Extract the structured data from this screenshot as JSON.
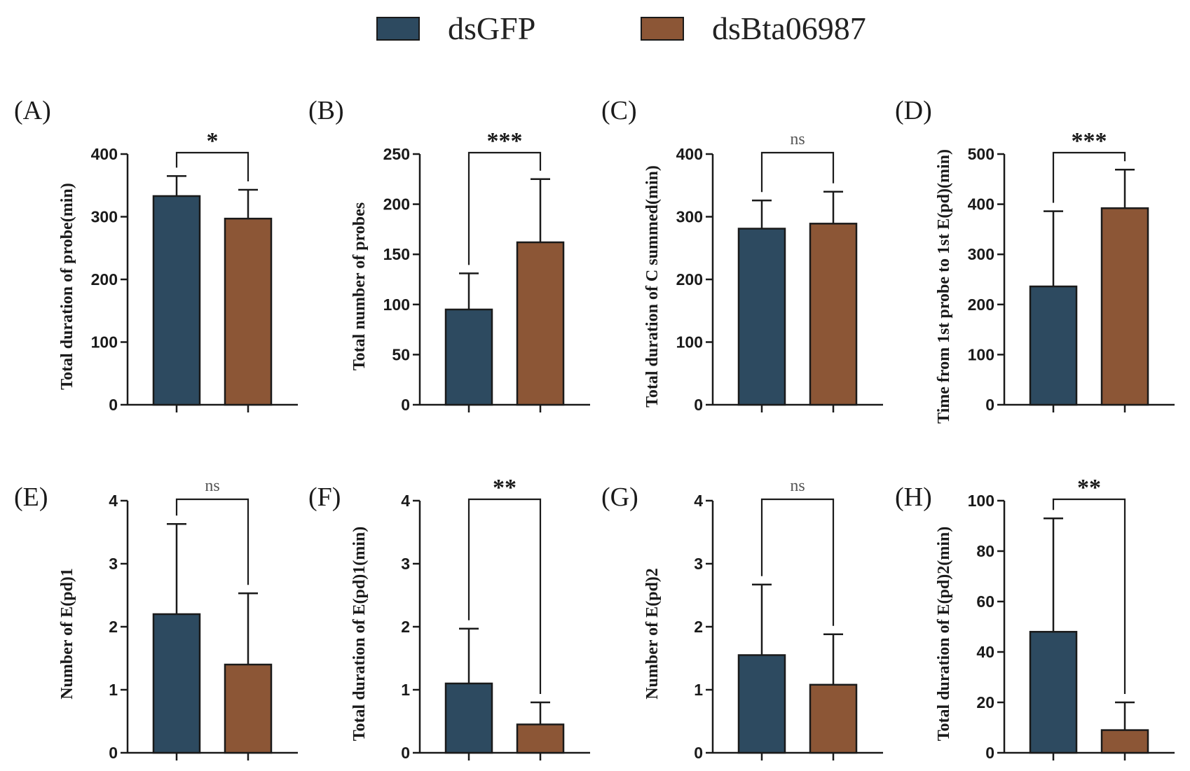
{
  "legend": {
    "items": [
      {
        "label": "dsGFP",
        "color": "#2d4a60"
      },
      {
        "label": "dsBta06987",
        "color": "#8c5636"
      }
    ]
  },
  "chart_data": [
    {
      "type": "bar",
      "panel": "(A)",
      "categories": [
        "dsGFP",
        "dsBta06987"
      ],
      "ylabel": "Total duration of probe(min)",
      "ylim": [
        0,
        400
      ],
      "yticks": [
        0,
        100,
        200,
        300,
        400
      ],
      "values": [
        333,
        297
      ],
      "errors": [
        32,
        46
      ],
      "significance": "*"
    },
    {
      "type": "bar",
      "panel": "(B)",
      "categories": [
        "dsGFP",
        "dsBta06987"
      ],
      "ylabel": "Total number of probes",
      "ylim": [
        0,
        250
      ],
      "yticks": [
        0,
        50,
        100,
        150,
        200,
        250
      ],
      "values": [
        95,
        162
      ],
      "errors": [
        36,
        63
      ],
      "significance": "***"
    },
    {
      "type": "bar",
      "panel": "(C)",
      "categories": [
        "dsGFP",
        "dsBta06987"
      ],
      "ylabel": "Total duration of C summed(min)",
      "ylim": [
        0,
        400
      ],
      "yticks": [
        0,
        100,
        200,
        300,
        400
      ],
      "values": [
        281,
        289
      ],
      "errors": [
        45,
        51
      ],
      "significance": "ns"
    },
    {
      "type": "bar",
      "panel": "(D)",
      "categories": [
        "dsGFP",
        "dsBta06987"
      ],
      "ylabel": "Time from 1st probe to 1st E(pd)(min)",
      "ylim": [
        0,
        500
      ],
      "yticks": [
        0,
        100,
        200,
        300,
        400,
        500
      ],
      "values": [
        236,
        392
      ],
      "errors": [
        150,
        77
      ],
      "significance": "***"
    },
    {
      "type": "bar",
      "panel": "(E)",
      "categories": [
        "dsGFP",
        "dsBta06987"
      ],
      "ylabel": "Number of E(pd)1",
      "ylim": [
        0,
        4
      ],
      "yticks": [
        0,
        1,
        2,
        3,
        4
      ],
      "values": [
        2.2,
        1.4
      ],
      "errors": [
        1.43,
        1.13
      ],
      "significance": "ns"
    },
    {
      "type": "bar",
      "panel": "(F)",
      "categories": [
        "dsGFP",
        "dsBta06987"
      ],
      "ylabel": "Total duration of E(pd)1(min)",
      "ylim": [
        0,
        4
      ],
      "yticks": [
        0,
        1,
        2,
        3,
        4
      ],
      "values": [
        1.1,
        0.45
      ],
      "errors": [
        0.87,
        0.35
      ],
      "significance": "**"
    },
    {
      "type": "bar",
      "panel": "(G)",
      "categories": [
        "dsGFP",
        "dsBta06987"
      ],
      "ylabel": "Number of E(pd)2",
      "ylim": [
        0,
        4
      ],
      "yticks": [
        0,
        1,
        2,
        3,
        4
      ],
      "values": [
        1.55,
        1.08
      ],
      "errors": [
        1.12,
        0.8
      ],
      "significance": "ns"
    },
    {
      "type": "bar",
      "panel": "(H)",
      "categories": [
        "dsGFP",
        "dsBta06987"
      ],
      "ylabel": "Total duration of E(pd)2(min)",
      "ylim": [
        0,
        100
      ],
      "yticks": [
        0,
        20,
        40,
        60,
        80,
        100
      ],
      "values": [
        48,
        9
      ],
      "errors": [
        45,
        11
      ],
      "significance": "**"
    }
  ]
}
